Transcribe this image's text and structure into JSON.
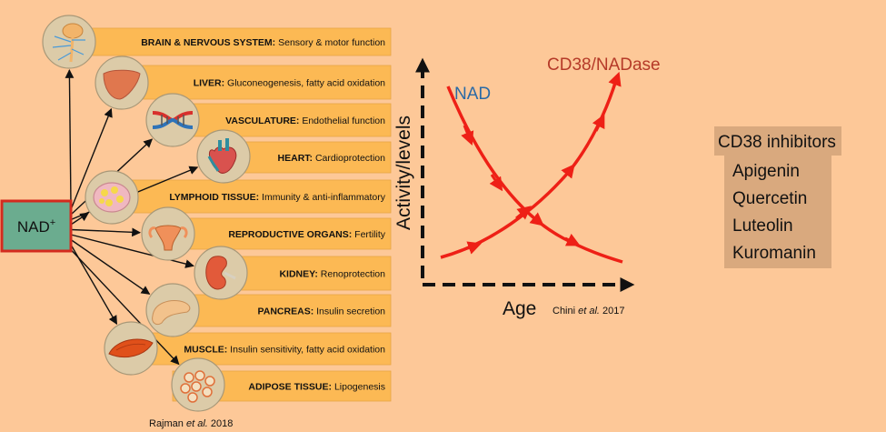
{
  "colors": {
    "background": "#fdc898",
    "row_box": "#fcb954",
    "nad_box": "#6bac8f",
    "nad_border": "#d42a1e",
    "curve": "#ee2016",
    "nad_curve_label": "#2a6aa6",
    "cd38_curve_label": "#b53a28",
    "inhibitor_box": "#d9a97e"
  },
  "source": {
    "label": "NAD",
    "superscript": "+"
  },
  "organs": [
    {
      "name": "BRAIN & NERVOUS SYSTEM:",
      "effect": "Sensory & motor function",
      "icon": "brain-nerves-icon"
    },
    {
      "name": "LIVER:",
      "effect": "Gluconeogenesis, fatty acid oxidation",
      "icon": "liver-icon"
    },
    {
      "name": "VASCULATURE:",
      "effect": "Endothelial function",
      "icon": "blood-vessels-icon"
    },
    {
      "name": "HEART:",
      "effect": "Cardioprotection",
      "icon": "heart-icon"
    },
    {
      "name": "LYMPHOID TISSUE:",
      "effect": "Immunity & anti-inflammatory",
      "icon": "lymph-node-icon"
    },
    {
      "name": "REPRODUCTIVE ORGANS:",
      "effect": "Fertility",
      "icon": "uterus-icon"
    },
    {
      "name": "KIDNEY:",
      "effect": "Renoprotection",
      "icon": "kidney-icon"
    },
    {
      "name": "PANCREAS:",
      "effect": "Insulin secretion",
      "icon": "pancreas-icon"
    },
    {
      "name": "MUSCLE:",
      "effect": "Insulin sensitivity, fatty acid oxidation",
      "icon": "muscle-icon"
    },
    {
      "name": "ADIPOSE TISSUE:",
      "effect": "Lipogenesis",
      "icon": "adipose-cells-icon"
    }
  ],
  "left_citation": {
    "pre": "Rajman ",
    "italic": "et al.",
    "post": " 2018"
  },
  "age_graph": {
    "y_axis_title": "Activity/levels",
    "x_axis_title": "Age",
    "citation": {
      "pre": "Chini ",
      "italic": "et al.",
      "post": " 2017"
    },
    "nad_label": "NAD",
    "cd38_label": "CD38/NADase"
  },
  "inhibitors": {
    "title": "CD38 inhibitors",
    "items": [
      "Apigenin",
      "Quercetin",
      "Luteolin",
      "Kuromanin"
    ]
  }
}
